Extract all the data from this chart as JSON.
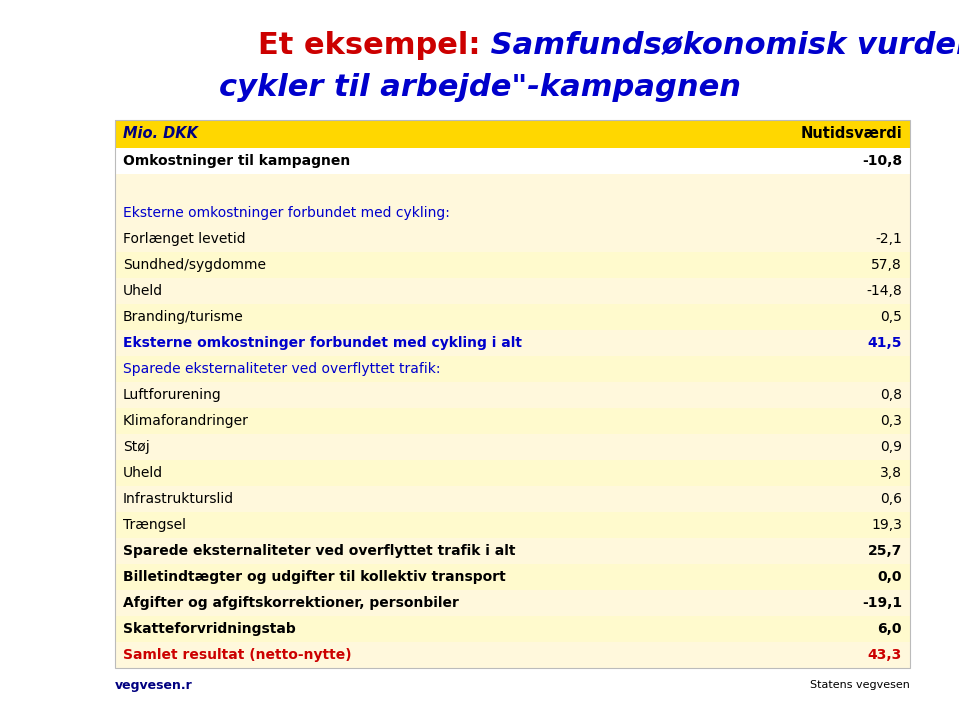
{
  "title_red": "Et eksempel:",
  "title_blue_line1": " Samfundsøkonomisk vurdering af \"Vi",
  "title_blue_line2": "cykler til arbejde\"-kampagnen",
  "header_col1": "Mio. DKK",
  "header_col2": "Nutidsværdi",
  "header_bg": "#FFD700",
  "header_text_color": "#000080",
  "rows": [
    {
      "label": "Omkostninger til kampagnen",
      "value": "-10,8",
      "bold": true,
      "color": "black",
      "bg": "#FFFFFF"
    },
    {
      "label": "",
      "value": "",
      "bold": false,
      "color": "black",
      "bg": "#FFF8DC"
    },
    {
      "label": "Eksterne omkostninger forbundet med cykling:",
      "value": "",
      "bold": false,
      "color": "#0000CC",
      "bg": "#FFF8DC"
    },
    {
      "label": "Forlænget levetid",
      "value": "-2,1",
      "bold": false,
      "color": "black",
      "bg": "#FFF8DC"
    },
    {
      "label": "Sundhed/sygdomme",
      "value": "57,8",
      "bold": false,
      "color": "black",
      "bg": "#FFFACD"
    },
    {
      "label": "Uheld",
      "value": "-14,8",
      "bold": false,
      "color": "black",
      "bg": "#FFF8DC"
    },
    {
      "label": "Branding/turisme",
      "value": "0,5",
      "bold": false,
      "color": "black",
      "bg": "#FFFACD"
    },
    {
      "label": "Eksterne omkostninger forbundet med cykling i alt",
      "value": "41,5",
      "bold": true,
      "color": "#0000CC",
      "bg": "#FFF8DC"
    },
    {
      "label": "Sparede eksternaliteter ved overflyttet trafik:",
      "value": "",
      "bold": false,
      "color": "#0000CC",
      "bg": "#FFFACD"
    },
    {
      "label": "Luftforurening",
      "value": "0,8",
      "bold": false,
      "color": "black",
      "bg": "#FFF8DC"
    },
    {
      "label": "Klimaforandringer",
      "value": "0,3",
      "bold": false,
      "color": "black",
      "bg": "#FFFACD"
    },
    {
      "label": "Støj",
      "value": "0,9",
      "bold": false,
      "color": "black",
      "bg": "#FFF8DC"
    },
    {
      "label": "Uheld",
      "value": "3,8",
      "bold": false,
      "color": "black",
      "bg": "#FFFACD"
    },
    {
      "label": "Infrastrukturslid",
      "value": "0,6",
      "bold": false,
      "color": "black",
      "bg": "#FFF8DC"
    },
    {
      "label": "Trængsel",
      "value": "19,3",
      "bold": false,
      "color": "black",
      "bg": "#FFFACD"
    },
    {
      "label": "Sparede eksternaliteter ved overflyttet trafik i alt",
      "value": "25,7",
      "bold": true,
      "color": "black",
      "bg": "#FFF8DC"
    },
    {
      "label": "Billetindtægter og udgifter til kollektiv transport",
      "value": "0,0",
      "bold": true,
      "color": "black",
      "bg": "#FFFACD"
    },
    {
      "label": "Afgifter og afgiftskorrektioner, personbiler",
      "value": "-19,1",
      "bold": true,
      "color": "black",
      "bg": "#FFF8DC"
    },
    {
      "label": "Skatteforvridningstab",
      "value": "6,0",
      "bold": true,
      "color": "black",
      "bg": "#FFFACD"
    },
    {
      "label": "Samlet resultat (netto-nytte)",
      "value": "43,3",
      "bold": true,
      "color": "#CC0000",
      "bg": "#FFF8DC"
    }
  ],
  "footer_text": "vegvesen.r",
  "footer_color": "#000080",
  "background_color": "#FFFFFF",
  "title_red_color": "#CC0000",
  "title_blue_color": "#0000CC"
}
